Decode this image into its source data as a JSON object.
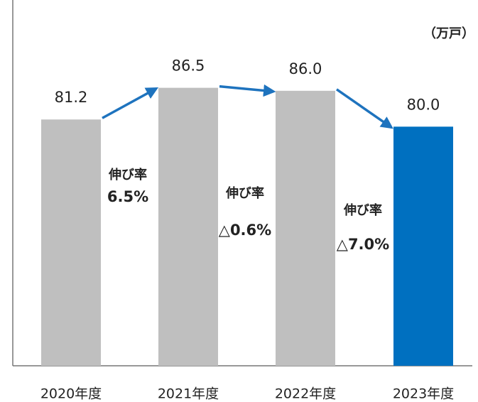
{
  "chart_data": {
    "type": "bar",
    "unit": "（万戸）",
    "categories": [
      "2020年度",
      "2021年度",
      "2022年度",
      "2023年度"
    ],
    "values": [
      81.2,
      86.5,
      86.0,
      80.0
    ],
    "value_labels": [
      "81.2",
      "86.5",
      "86.0",
      "80.0"
    ],
    "colors": [
      "#bfbfbf",
      "#bfbfbf",
      "#bfbfbf",
      "#0070c0"
    ],
    "ylim": [
      40,
      100
    ],
    "annotations": [
      {
        "label": "伸び率",
        "value": "6.5%"
      },
      {
        "label": "伸び率",
        "value": "△0.6%"
      },
      {
        "label": "伸び率",
        "value": "△7.0%"
      }
    ],
    "annotation_color": "#1f35d0",
    "arrow_color": "#1e73be"
  }
}
